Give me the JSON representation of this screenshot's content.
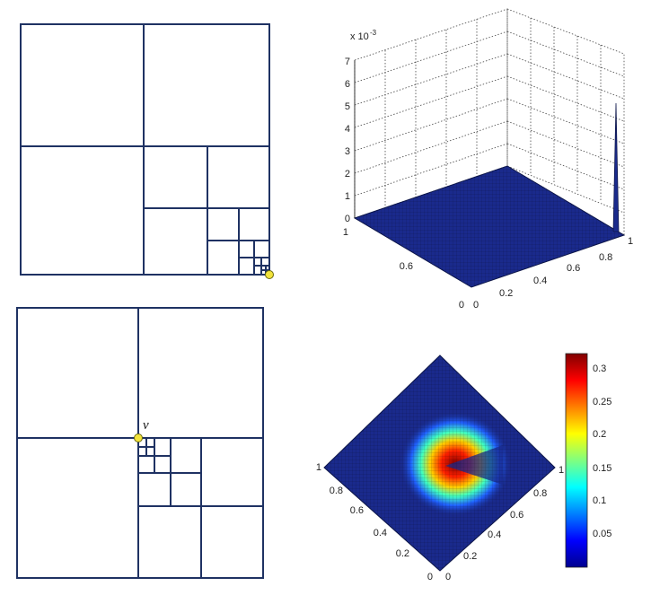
{
  "top_right_plot": {
    "z_exponent": "x 10",
    "z_exponent_power": "-3",
    "z_ticks": [
      "0",
      "1",
      "2",
      "3",
      "4",
      "5",
      "6",
      "7"
    ],
    "back_axis_ticks": [
      "1",
      "0.6"
    ],
    "left_axis_ticks": [
      "0",
      "0.2",
      "0.4",
      "0.6",
      "0.8",
      "1"
    ],
    "corner_tick": "0"
  },
  "bottom_left_mesh": {
    "vertex_label": "v"
  },
  "bottom_right_plot": {
    "left_edge_ticks": [
      "1",
      "0.8",
      "0.6",
      "0.4",
      "0.2",
      "0"
    ],
    "right_edge_ticks": [
      "0",
      "0.2",
      "0.4",
      "0.6",
      "0.8",
      "1"
    ],
    "colorbar_ticks": [
      "0.3",
      "0.25",
      "0.2",
      "0.15",
      "0.1",
      "0.05"
    ]
  },
  "colors": {
    "mesh_line": "#1f3263",
    "vertex": "#f2e33b",
    "surface_base": "#1a2a8c"
  }
}
